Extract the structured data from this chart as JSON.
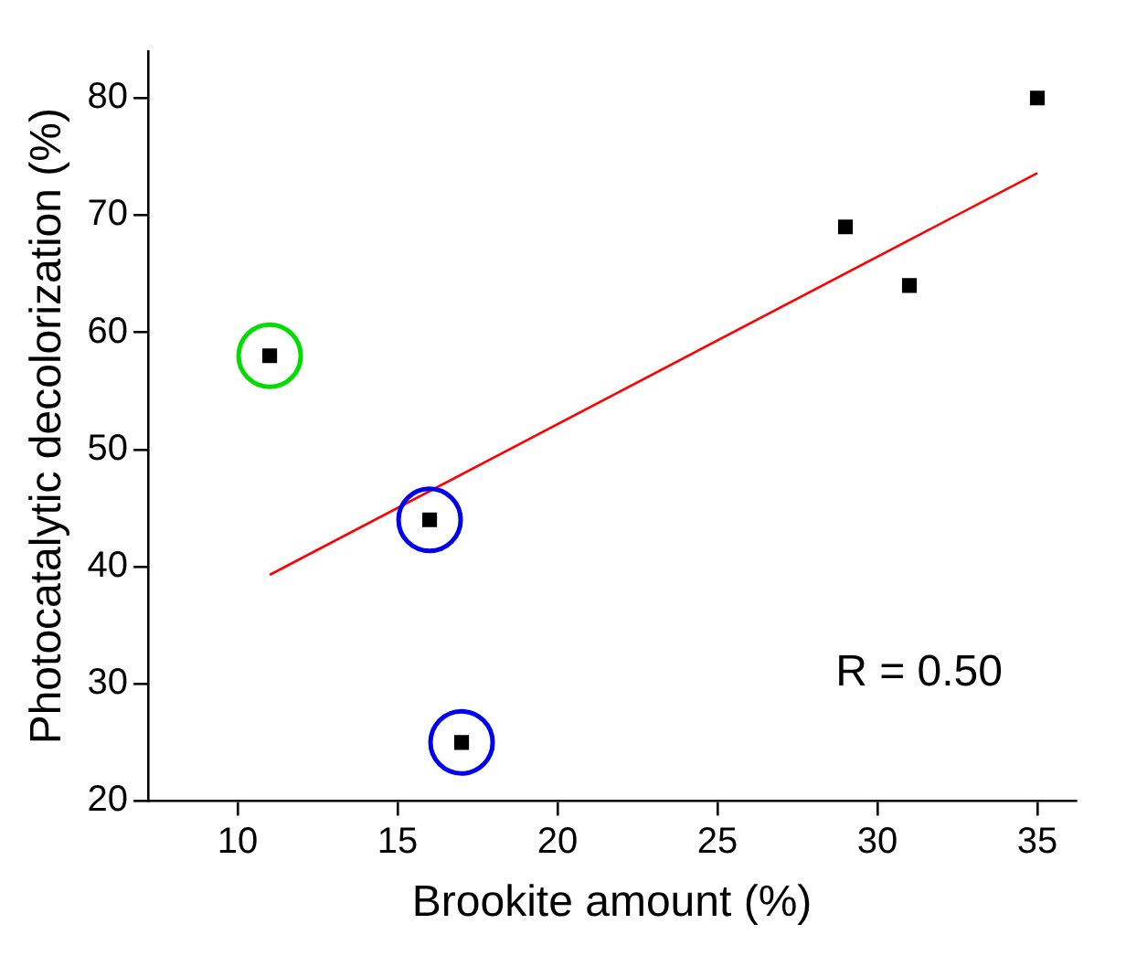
{
  "chart_data": {
    "type": "scatter",
    "xlabel": "Brookite amount (%)",
    "ylabel": "Photocatalytic decolorization (%)",
    "xlim": [
      7.2,
      36.2
    ],
    "xticks": [
      10,
      15,
      20,
      25,
      30,
      35
    ],
    "ylim": [
      20,
      84
    ],
    "yticks": [
      20,
      30,
      40,
      50,
      60,
      70,
      80
    ],
    "grid": false,
    "legend": false,
    "marker": "square",
    "series": [
      {
        "type": "scatter",
        "color": "#000000",
        "x": [
          11,
          16,
          17,
          29,
          31,
          35
        ],
        "values": [
          58,
          44,
          25,
          69,
          64,
          80
        ]
      },
      {
        "type": "line",
        "color": "#ff0000",
        "marker": "none",
        "x": [
          11,
          35
        ],
        "values": [
          39.3,
          73.6
        ]
      },
      {
        "type": "scatter",
        "marker": "circle",
        "colors": [
          "#00dd00",
          "#0000ee",
          "#0000ee"
        ],
        "x": [
          11,
          16,
          17
        ],
        "values": [
          58,
          44,
          25
        ]
      }
    ],
    "annotations": [
      "R = 0.50"
    ]
  }
}
